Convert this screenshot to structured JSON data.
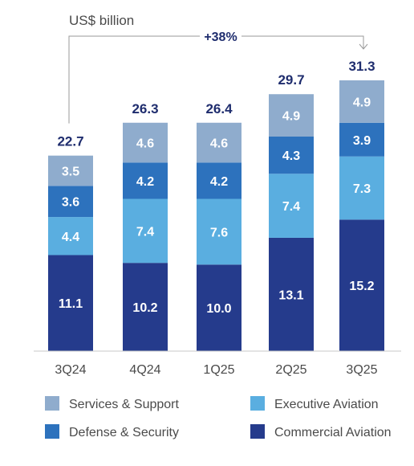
{
  "chart_data": {
    "type": "bar",
    "stacked": true,
    "unit_label": "US$ billion",
    "growth_label": "+38%",
    "categories": [
      "3Q24",
      "4Q24",
      "1Q25",
      "2Q25",
      "3Q25"
    ],
    "totals": [
      "22.7",
      "26.3",
      "26.4",
      "29.7",
      "31.3"
    ],
    "series": [
      {
        "name": "Commercial Aviation",
        "color": "#253b8c",
        "values": [
          11.1,
          10.2,
          10.0,
          13.1,
          15.2
        ],
        "labels": [
          "11.1",
          "10.2",
          "10.0",
          "13.1",
          "15.2"
        ]
      },
      {
        "name": "Executive Aviation",
        "color": "#5aaee0",
        "values": [
          4.4,
          7.4,
          7.6,
          7.4,
          7.3
        ],
        "labels": [
          "4.4",
          "7.4",
          "7.6",
          "7.4",
          "7.3"
        ]
      },
      {
        "name": "Defense & Security",
        "color": "#2d72bd",
        "values": [
          3.6,
          4.2,
          4.2,
          4.3,
          3.9
        ],
        "labels": [
          "3.6",
          "4.2",
          "4.2",
          "4.3",
          "3.9"
        ]
      },
      {
        "name": "Services & Support",
        "color": "#8faccd",
        "values": [
          3.5,
          4.6,
          4.6,
          4.9,
          4.9
        ],
        "labels": [
          "3.5",
          "4.6",
          "4.6",
          "4.9",
          "4.9"
        ]
      }
    ],
    "legend_order": [
      "Services & Support",
      "Executive Aviation",
      "Defense & Security",
      "Commercial Aviation"
    ],
    "axis_color": "#c8c8c8"
  }
}
